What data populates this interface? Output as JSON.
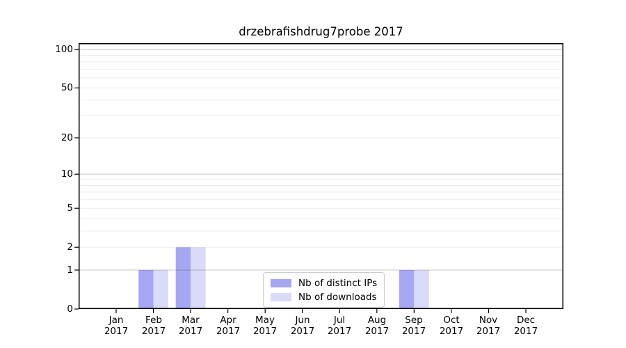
{
  "chart_data": {
    "type": "bar",
    "title": "drzebrafishdrug7probe 2017",
    "months": [
      "Jan",
      "Feb",
      "Mar",
      "Apr",
      "May",
      "Jun",
      "Jul",
      "Aug",
      "Sep",
      "Oct",
      "Nov",
      "Dec"
    ],
    "year": "2017",
    "series": [
      {
        "name": "Nb of distinct IPs",
        "color": "#a6a6f2",
        "values": [
          0,
          1,
          2,
          0,
          0,
          0,
          0,
          0,
          1,
          0,
          0,
          0
        ]
      },
      {
        "name": "Nb of downloads",
        "color": "#dadaf9",
        "values": [
          0,
          1,
          2,
          0,
          0,
          0,
          0,
          0,
          1,
          0,
          0,
          0
        ]
      }
    ],
    "y_scale": "log1p",
    "y_ticks": [
      0,
      1,
      2,
      5,
      10,
      20,
      50,
      100
    ],
    "major_gridlines": [
      1,
      10,
      100
    ],
    "minor_gridlines": [
      2,
      3,
      4,
      5,
      6,
      7,
      8,
      9,
      20,
      30,
      40,
      50,
      60,
      70,
      80,
      90
    ],
    "ylim": [
      0,
      112
    ],
    "grid": "horizontal",
    "legend_position": "bottom-center",
    "colors": {
      "distinct_ips": "#a6a6f2",
      "downloads": "#dadaf9",
      "grid_major": "rgba(0,0,0,0.22)",
      "grid_minor": "rgba(0,0,0,0.07)",
      "spine": "#000000",
      "background": "#ffffff"
    }
  }
}
